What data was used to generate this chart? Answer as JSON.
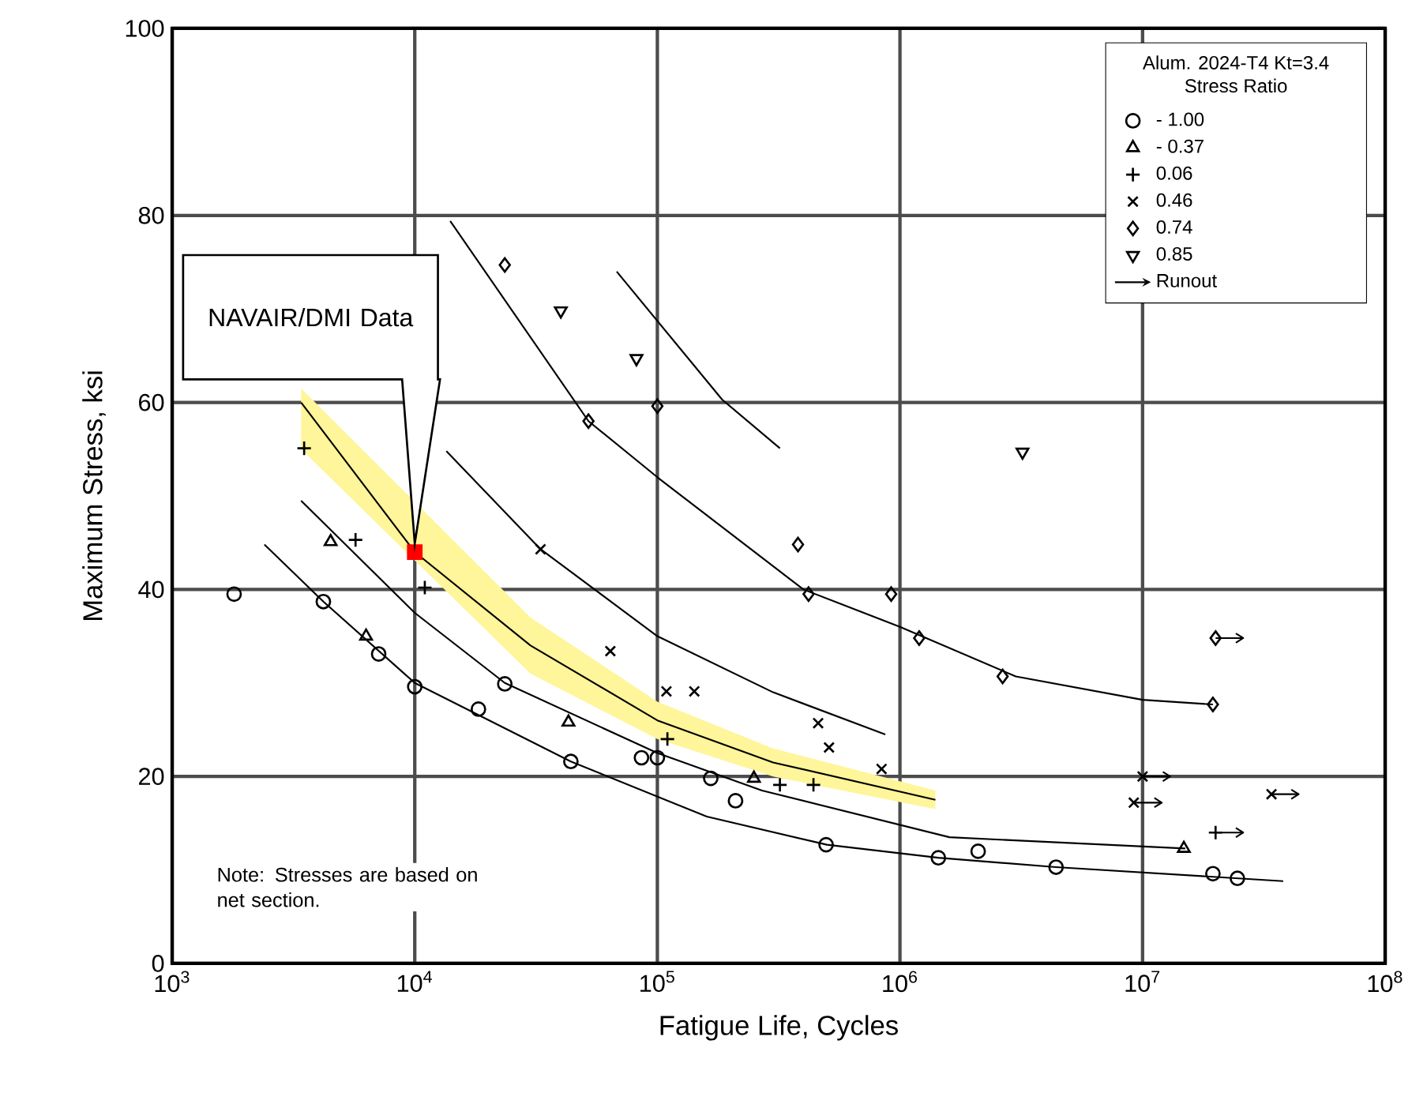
{
  "chart_data": {
    "type": "scatter",
    "xlabel": "Fatigue Life, Cycles",
    "ylabel": "Maximum Stress, ksi",
    "legend_title": "Alum. 2024-T4 Kt=3.4 Stress Ratio",
    "log": "x",
    "grid": true,
    "legend": "top right",
    "xlim": [
      1000,
      100000000
    ],
    "ylim": [
      0,
      100
    ],
    "xticks": [
      {
        "value": 1000,
        "label": "10$^{3}$"
      },
      {
        "value": 10000,
        "label": "10$^{4}$"
      },
      {
        "value": 100000,
        "label": "10$^{5}$"
      },
      {
        "value": 1000000,
        "label": "10$^{6}$"
      },
      {
        "value": 10000000,
        "label": "10$^{7}$"
      },
      {
        "value": 100000000,
        "label": "10$^{8}$"
      }
    ],
    "yticks": [
      0,
      20,
      40,
      60,
      80,
      100
    ],
    "annotations": [
      "NAVAIR/DMI Data",
      "Note:   Stresses are based on net section.",
      "Runout"
    ],
    "series": [
      {
        "type": "line",
        "color": "#000000",
        "x": [
          68000,
          185000,
          320000
        ],
        "values": [
          74.0,
          60.3,
          55.1
        ]
      },
      {
        "type": "line",
        "color": "#000000",
        "x": [
          14000,
          52000,
          100000,
          400000,
          1000000,
          3000000,
          10000000,
          19500000
        ],
        "values": [
          79.4,
          58,
          52,
          40,
          36,
          30.7,
          28.2,
          27.7
        ]
      },
      {
        "type": "line",
        "color": "#000000",
        "x": [
          13500,
          33000,
          100000,
          300000,
          870000
        ],
        "values": [
          54.8,
          44.3,
          35,
          29,
          24.5
        ]
      },
      {
        "type": "line",
        "color": "#000000",
        "x": [
          3400,
          10000,
          30000,
          100000,
          300000,
          1400000
        ],
        "values": [
          60,
          44,
          34,
          26,
          21.5,
          17.5
        ],
        "lower": [
          55,
          null,
          31,
          24,
          20,
          16.5
        ],
        "upper": [
          61.5,
          null,
          37,
          28,
          23,
          18.5
        ]
      },
      {
        "type": "line",
        "color": "#000000",
        "x": [
          3400,
          10000,
          23500,
          100000,
          270000,
          1600000,
          15000000
        ],
        "values": [
          49.5,
          37.5,
          30,
          22.5,
          18.5,
          13.5,
          12.3
        ]
      },
      {
        "type": "line",
        "color": "#000000",
        "x": [
          2400,
          4200,
          10000,
          44000,
          160000,
          500000,
          1440000,
          4400000,
          38000000
        ],
        "values": [
          44.8,
          38.7,
          30,
          21.6,
          15.7,
          12.7,
          11.3,
          10.3,
          8.8
        ]
      },
      {
        "name": "- 1.00",
        "color": "#000000",
        "marker": "circle",
        "x": [
          1800,
          4200,
          7100,
          10000,
          18300,
          23500,
          44000,
          86000,
          100000,
          166000,
          210000,
          496000,
          1440000,
          2100000,
          4400000,
          19500000,
          24600000
        ],
        "values": [
          39.5,
          38.7,
          33.1,
          29.6,
          27.2,
          29.9,
          21.6,
          22,
          22,
          19.8,
          17.4,
          12.7,
          11.3,
          12.0,
          10.3,
          9.6,
          9.1
        ]
      },
      {
        "name": "- 0.37",
        "color": "#000000",
        "marker": "triangle",
        "x": [
          4500,
          6300,
          43000,
          250000,
          14800000
        ],
        "values": [
          45.1,
          35,
          25.8,
          19.8,
          12.3
        ]
      },
      {
        "name": "0.06",
        "color": "#000000",
        "marker": "plus",
        "x": [
          3500,
          5700,
          11000,
          110000,
          320000,
          440000,
          20000000
        ],
        "values": [
          55.1,
          45.3,
          40.2,
          24.0,
          19.1,
          19.1,
          14.0
        ],
        "xerrors": [
          null,
          null,
          null,
          null,
          null,
          null,
          [
            20000000,
            26000000
          ]
        ]
      },
      {
        "name": "0.46",
        "color": "#000000",
        "marker": "cross",
        "x": [
          33000,
          64000,
          109000,
          142000,
          460000,
          510000,
          840000,
          10000000,
          9200000,
          34000000
        ],
        "values": [
          44.3,
          33.4,
          29.1,
          29.1,
          25.7,
          23.1,
          20.8,
          20,
          17.2,
          18.1
        ],
        "xerrors": [
          null,
          null,
          null,
          null,
          null,
          null,
          null,
          [
            10000000,
            13000000
          ],
          [
            9200000,
            12000000
          ],
          [
            34000000,
            44000000
          ]
        ]
      },
      {
        "name": "0.74",
        "color": "#000000",
        "marker": "diamond",
        "x": [
          23500,
          52000,
          100000,
          380000,
          420000,
          920000,
          1200000,
          2650000,
          19500000,
          20000000
        ],
        "values": [
          74.7,
          58,
          59.6,
          44.8,
          39.5,
          39.5,
          34.8,
          30.7,
          27.7,
          34.8
        ],
        "xerrors": [
          null,
          null,
          null,
          null,
          null,
          null,
          null,
          null,
          null,
          [
            20000000,
            26000000
          ]
        ]
      },
      {
        "name": "0.85",
        "color": "#000000",
        "marker": "triangle-down",
        "x": [
          40000,
          82000,
          3200000
        ],
        "values": [
          69.8,
          64.7,
          54.7
        ]
      },
      {
        "color": "#ff0000",
        "marker": "square",
        "x": [
          10000
        ],
        "values": [
          44
        ]
      }
    ]
  }
}
